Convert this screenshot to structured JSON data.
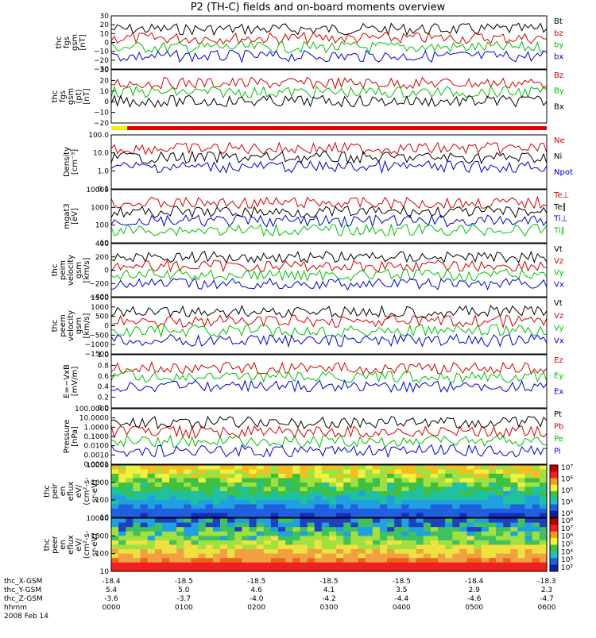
{
  "title": "P2 (TH-C) fields and on-board moments overview",
  "panels": [
    {
      "id": "fgs_gsm",
      "ylabel": [
        "thc",
        "fgs",
        "gsm",
        "[nT]"
      ],
      "ticks": [
        "30",
        "20",
        "10",
        "0",
        "−10",
        "−20",
        "−30"
      ],
      "legend": [
        {
          "name": "Bt",
          "color": "#000000"
        },
        {
          "name": "bz",
          "color": "#d40000"
        },
        {
          "name": "by",
          "color": "#00c000"
        },
        {
          "name": "bx",
          "color": "#0000d0"
        }
      ]
    },
    {
      "id": "fgs_dsl",
      "ylabel": [
        "thc",
        "fgs",
        "gsm",
        "(pt)",
        "[nT]"
      ],
      "ticks": [
        "30",
        "20",
        "10",
        "0",
        "−10",
        "−20"
      ],
      "legend": [
        {
          "name": "Bz",
          "color": "#d40000"
        },
        {
          "name": "By",
          "color": "#00c000"
        },
        {
          "name": "Bx",
          "color": "#000000"
        }
      ]
    },
    {
      "id": "density",
      "ylabel": [
        "Density",
        "[cm⁻³]"
      ],
      "ticks": [
        "100.0",
        "10.0",
        "1.0",
        "0.1"
      ],
      "legend": [
        {
          "name": "Ne",
          "color": "#d40000"
        },
        {
          "name": "Ni",
          "color": "#000000"
        },
        {
          "name": "Npot",
          "color": "#0000d0"
        }
      ]
    },
    {
      "id": "temp",
      "ylabel": [
        "mgat3",
        "[eV]"
      ],
      "ticks": [
        "10000",
        "1000",
        "100",
        "10"
      ],
      "legend": [
        {
          "name": "Te⊥",
          "color": "#d40000"
        },
        {
          "name": "Te∥",
          "color": "#000000"
        },
        {
          "name": "Ti⊥",
          "color": "#0000d0"
        },
        {
          "name": "Ti∥",
          "color": "#00c000"
        }
      ]
    },
    {
      "id": "vi",
      "ylabel": [
        "thc",
        "peim",
        "velocity",
        "gsm",
        "[km/s]"
      ],
      "ticks": [
        "400",
        "200",
        "0",
        "−200",
        "−400"
      ],
      "legend": [
        {
          "name": "Vt",
          "color": "#000000"
        },
        {
          "name": "Vz",
          "color": "#d40000"
        },
        {
          "name": "Vy",
          "color": "#00c000"
        },
        {
          "name": "Vx",
          "color": "#0000d0"
        }
      ]
    },
    {
      "id": "ve",
      "ylabel": [
        "thc",
        "peem",
        "velocity",
        "gsm",
        "[km/s]"
      ],
      "ticks": [
        "1500",
        "1000",
        "500",
        "0",
        "−500",
        "−1000",
        "−1500"
      ],
      "legend": [
        {
          "name": "Vt",
          "color": "#000000"
        },
        {
          "name": "Vz",
          "color": "#d40000"
        },
        {
          "name": "Vy",
          "color": "#00c000"
        },
        {
          "name": "Vx",
          "color": "#0000d0"
        }
      ]
    },
    {
      "id": "efield",
      "ylabel": [
        "E=−VxB",
        "[mV/m]"
      ],
      "ticks": [
        "1.0",
        "0.8",
        "0.6",
        "0.4",
        "0.2",
        "0.0"
      ],
      "legend": [
        {
          "name": "Ez",
          "color": "#d40000"
        },
        {
          "name": "Ey",
          "color": "#00c000"
        },
        {
          "name": "Ex",
          "color": "#0000d0"
        }
      ]
    },
    {
      "id": "pressure",
      "ylabel": [
        "Pressure",
        "[nPa]"
      ],
      "ticks": [
        "100.0000",
        "10.0000",
        "1.0000",
        "0.1000",
        "0.0100",
        "0.0010",
        "0.0001"
      ],
      "legend": [
        {
          "name": "Pt",
          "color": "#000000"
        },
        {
          "name": "Pb",
          "color": "#d40000"
        },
        {
          "name": "Pe",
          "color": "#00c000"
        },
        {
          "name": "Pi",
          "color": "#0000d0"
        }
      ]
    },
    {
      "id": "ion_spec",
      "ylabel": [
        "thc",
        "peir",
        "en",
        "eflux",
        "eV/",
        "(cm²-s-",
        "sr-eV)"
      ],
      "ticks": [
        "10000",
        "1000",
        "100",
        "10"
      ],
      "colorbar": [
        "10⁷",
        "10⁶",
        "10⁵",
        "10⁴",
        "10³"
      ]
    },
    {
      "id": "ele_spec",
      "ylabel": [
        "thc",
        "peer",
        "en",
        "eflux",
        "eV/",
        "(cm²-s-",
        "sr-eV)"
      ],
      "ticks": [
        "10000",
        "1000",
        "100",
        "10"
      ],
      "colorbar": [
        "10⁸",
        "10⁷",
        "10⁶",
        "10⁵",
        "10⁴",
        "10³",
        "10²"
      ]
    }
  ],
  "xaxis": {
    "rows": [
      {
        "label": "thc_X-GSM",
        "values": [
          "-18.4",
          "-18.5",
          "-18.5",
          "-18.5",
          "-18.5",
          "-18.4",
          "-18.3"
        ]
      },
      {
        "label": "thc_Y-GSM",
        "values": [
          "5.4",
          "5.0",
          "4.6",
          "4.1",
          "3.5",
          "2.9",
          "2.3"
        ]
      },
      {
        "label": "thc_Z-GSM",
        "values": [
          "-3.6",
          "-3.7",
          "-4.0",
          "-4.2",
          "-4.4",
          "-4.6",
          "-4.7"
        ]
      },
      {
        "label": "hhmm",
        "values": [
          "0000",
          "0100",
          "0200",
          "0300",
          "0400",
          "0500",
          "0600"
        ]
      }
    ],
    "date": "2008 Feb 14"
  },
  "chart_data": {
    "type": "line",
    "title": "P2 (TH-C) fields and on-board moments overview",
    "x": [
      "0000",
      "0100",
      "0200",
      "0300",
      "0400",
      "0500",
      "0600"
    ],
    "xlabel": "hhmm",
    "series": [
      {
        "name": "Bt",
        "values": [
          27,
          12,
          25,
          26,
          24,
          20,
          22
        ]
      },
      {
        "name": "bz",
        "values": [
          3,
          2,
          2,
          1,
          1,
          0,
          1
        ]
      },
      {
        "name": "by",
        "values": [
          5,
          2,
          8,
          7,
          4,
          4,
          5
        ]
      },
      {
        "name": "bx",
        "values": [
          -25,
          -5,
          -22,
          -22,
          -20,
          -16,
          -18
        ]
      }
    ],
    "ylim": [
      -30,
      30
    ]
  }
}
